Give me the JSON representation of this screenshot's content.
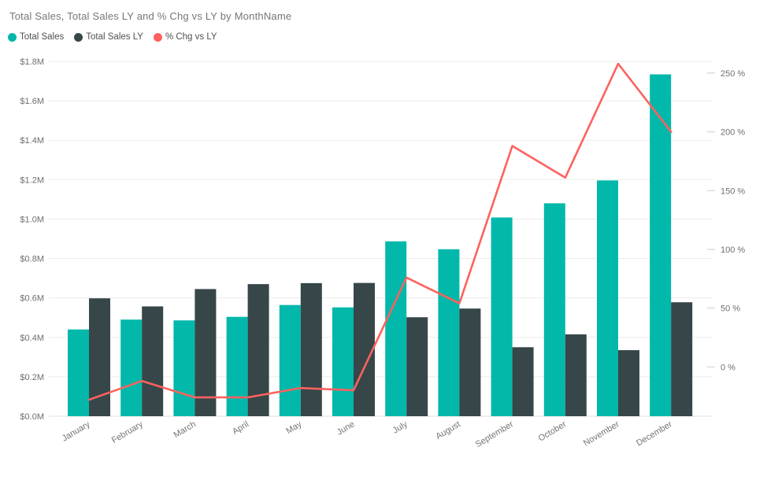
{
  "chart_data": {
    "type": "combo-bar-line",
    "title": "Total Sales, Total Sales LY and % Chg vs LY by MonthName",
    "categories": [
      "January",
      "February",
      "March",
      "April",
      "May",
      "June",
      "July",
      "August",
      "September",
      "October",
      "November",
      "December"
    ],
    "series": [
      {
        "name": "Total Sales",
        "type": "bar",
        "axis": "left",
        "color": "#01B8AA",
        "values": [
          0.44,
          0.49,
          0.486,
          0.504,
          0.564,
          0.552,
          0.887,
          0.847,
          1.008,
          1.08,
          1.196,
          1.734
        ],
        "unit": "M USD"
      },
      {
        "name": "Total Sales LY",
        "type": "bar",
        "axis": "left",
        "color": "#374649",
        "values": [
          0.598,
          0.557,
          0.645,
          0.67,
          0.675,
          0.676,
          0.502,
          0.546,
          0.35,
          0.415,
          0.335,
          0.578
        ],
        "unit": "M USD"
      },
      {
        "name": "% Chg vs LY",
        "type": "line",
        "axis": "right",
        "color": "#FD625E",
        "values": [
          -28,
          -12,
          -26,
          -26,
          -18,
          -20,
          76,
          54,
          188,
          161,
          258,
          200
        ],
        "unit": "%"
      }
    ],
    "y_axis_left": {
      "ticks": [
        "$0.0M",
        "$0.2M",
        "$0.4M",
        "$0.6M",
        "$0.8M",
        "$1.0M",
        "$1.2M",
        "$1.4M",
        "$1.6M",
        "$1.8M"
      ],
      "tick_values": [
        0,
        0.2,
        0.4,
        0.6,
        0.8,
        1.0,
        1.2,
        1.4,
        1.6,
        1.8
      ],
      "min": 0,
      "max": 1.8
    },
    "y_axis_right": {
      "ticks": [
        "0 %",
        "50 %",
        "100 %",
        "150 %",
        "200 %",
        "250 %"
      ],
      "tick_values": [
        0,
        50,
        100,
        150,
        200,
        250
      ],
      "min": -42,
      "max": 260
    },
    "grid": true,
    "legend_position": "top-left"
  },
  "legend": {
    "items": [
      {
        "label": "Total Sales",
        "color": "#01B8AA"
      },
      {
        "label": "Total Sales LY",
        "color": "#374649"
      },
      {
        "label": "% Chg vs LY",
        "color": "#FD625E"
      }
    ]
  }
}
